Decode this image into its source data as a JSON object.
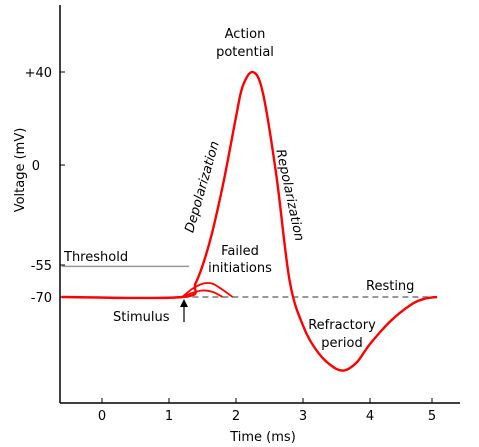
{
  "chart_data": {
    "type": "line",
    "xlabel": "Time (ms)",
    "ylabel": "Voltage (mV)",
    "x_ticks": [
      "0",
      "1",
      "2",
      "3",
      "4",
      "5"
    ],
    "y_ticks": [
      "+40",
      "0",
      "-55",
      "-70"
    ],
    "xlim": [
      -0.6,
      5.35
    ],
    "ylim": [
      -110,
      65
    ],
    "grid": false,
    "series": [
      {
        "name": "",
        "color": "#ff0000",
        "x": [
          -0.6,
          1.2,
          1.4,
          1.6,
          1.8,
          2.0,
          2.1,
          2.25,
          2.4,
          2.6,
          2.8,
          3.0,
          3.2,
          3.4,
          3.6,
          3.8,
          4.0,
          4.3,
          4.6,
          4.8,
          5.0
        ],
        "y": [
          -70,
          -70,
          -63,
          -44,
          -16,
          18,
          33,
          40,
          30,
          -10,
          -62,
          -84,
          -96,
          -103,
          -106,
          -102,
          -93,
          -82,
          -74,
          -71,
          -70
        ]
      }
    ],
    "failed_initiations": [
      {
        "x": [
          1.2,
          1.35,
          1.5,
          1.65,
          1.8,
          1.95
        ],
        "y": [
          -70,
          -66,
          -63.5,
          -63.5,
          -66.5,
          -70
        ]
      },
      {
        "x": [
          1.2,
          1.35,
          1.5,
          1.65,
          1.8
        ],
        "y": [
          -70,
          -68,
          -66.8,
          -67.5,
          -70
        ]
      }
    ],
    "threshold_mv": -55,
    "threshold_x_range": [
      -0.6,
      1.3
    ],
    "resting_mv": -70,
    "resting_dashed_x_range": [
      1.2,
      5.0
    ],
    "stimulus_time_ms": 1.2,
    "annotations": {
      "action_potential": [
        "Action",
        "potential"
      ],
      "depolarization": "Depolarization",
      "repolarization": "Repolarization",
      "failed_initiations": [
        "Failed",
        "initiations"
      ],
      "threshold": "Threshold",
      "resting": "Resting",
      "stimulus": "Stimulus",
      "refractory_period": [
        "Refractory",
        "period"
      ]
    },
    "colors": {
      "curve": "#ff0000",
      "threshold_line": "#999999",
      "resting_dashed": "#999999",
      "axes": "#000000"
    }
  }
}
